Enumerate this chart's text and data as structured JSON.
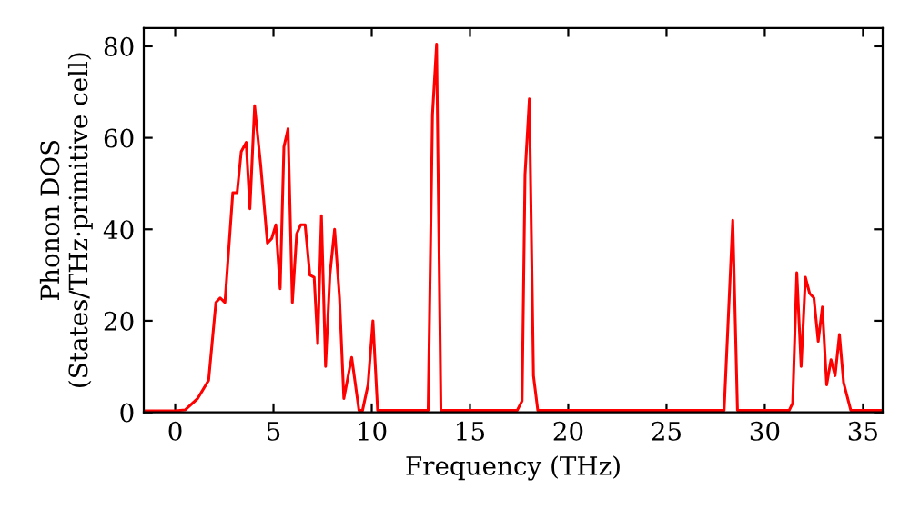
{
  "chart_data": {
    "type": "line",
    "xlabel": "Frequency (THz)",
    "ylabel": "Phonon DOS\n(States/THz·primitive cell)",
    "xlim": [
      -1.6,
      36
    ],
    "ylim": [
      0,
      84
    ],
    "xticks": [
      0,
      5,
      10,
      15,
      20,
      25,
      30,
      35
    ],
    "yticks": [
      0,
      20,
      40,
      60,
      80
    ],
    "grid": false,
    "legend": false,
    "marker": "none",
    "line_style": "solid",
    "series": [
      {
        "color": "#ff0000",
        "x": [
          -1.6,
          0,
          0.5,
          1.14,
          1.7,
          2.07,
          2.29,
          2.53,
          2.93,
          3.15,
          3.36,
          3.61,
          3.8,
          4.04,
          4.35,
          4.69,
          4.91,
          5.12,
          5.34,
          5.53,
          5.74,
          5.96,
          6.18,
          6.39,
          6.61,
          6.85,
          7.07,
          7.25,
          7.44,
          7.65,
          7.87,
          8.11,
          8.36,
          8.58,
          8.98,
          9.35,
          9.53,
          9.81,
          10.06,
          10.3,
          12.87,
          13.09,
          13.3,
          13.52,
          17.4,
          17.65,
          17.8,
          18.02,
          18.23,
          18.45,
          27.93,
          28.37,
          28.61,
          31.24,
          31.42,
          31.63,
          31.85,
          32.07,
          32.28,
          32.5,
          32.72,
          32.93,
          33.15,
          33.37,
          33.58,
          33.8,
          34.01,
          34.38,
          36
        ],
        "values": [
          0.3,
          0.3,
          0.5,
          3,
          7,
          24,
          25,
          24,
          48,
          48,
          57,
          59,
          44.5,
          67,
          54,
          37,
          38,
          41,
          27,
          58,
          62,
          24,
          39,
          41,
          41,
          30,
          29.5,
          15,
          43,
          10,
          30,
          40,
          25,
          3,
          12,
          0.4,
          0.4,
          6,
          20,
          0.4,
          0.4,
          65,
          80.5,
          0.4,
          0.4,
          2.5,
          52,
          68.5,
          8,
          0.4,
          0.4,
          42,
          0.4,
          0.4,
          2,
          30.5,
          10,
          29.5,
          26,
          25,
          15.5,
          23,
          6,
          11.5,
          8,
          17,
          6.5,
          0.4,
          0.4
        ]
      }
    ]
  }
}
